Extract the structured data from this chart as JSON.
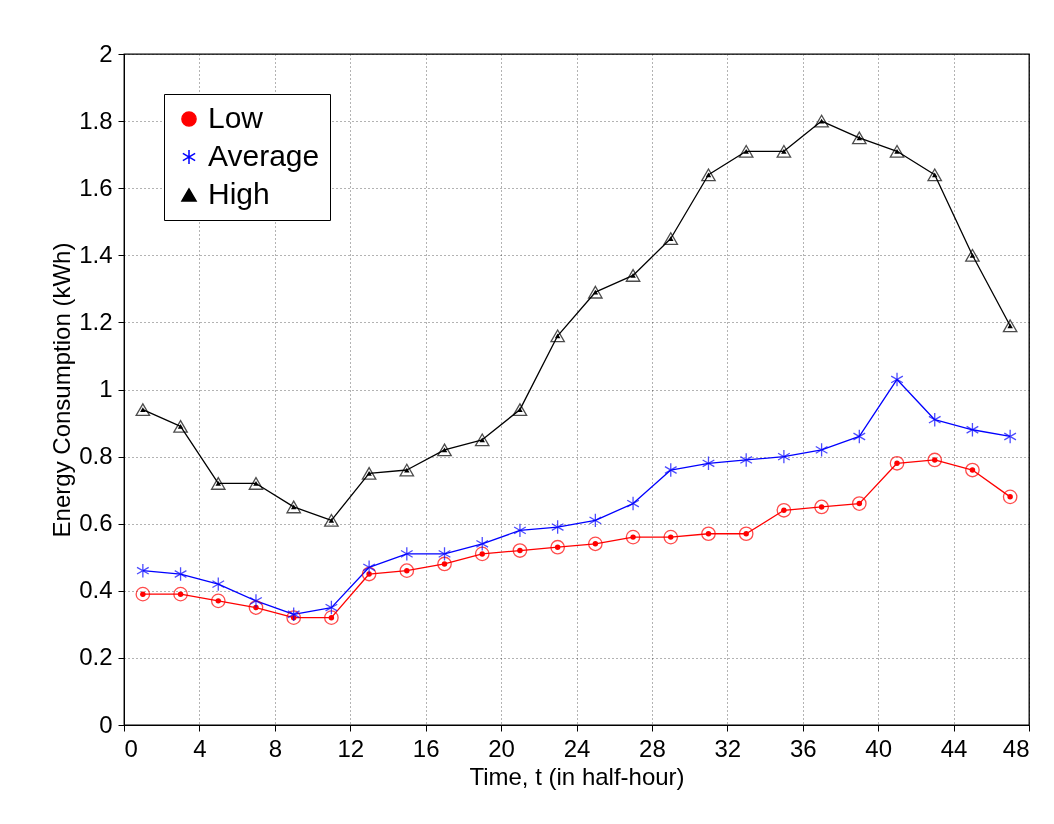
{
  "chart_data": {
    "type": "line",
    "xlabel": "Time, t (in half-hour)",
    "ylabel": "Energy Consumption (kWh)",
    "x": [
      1,
      3,
      5,
      7,
      9,
      11,
      13,
      15,
      17,
      19,
      21,
      23,
      25,
      27,
      29,
      31,
      33,
      35,
      37,
      39,
      41,
      43,
      45,
      47
    ],
    "xlim": [
      0,
      48
    ],
    "xticks": [
      0,
      4,
      8,
      12,
      16,
      20,
      24,
      28,
      32,
      36,
      40,
      44,
      48
    ],
    "ylim": [
      0,
      2
    ],
    "yticks": [
      0,
      0.2,
      0.4,
      0.6,
      0.8,
      1,
      1.2,
      1.4,
      1.6,
      1.8,
      2
    ],
    "grid": true,
    "legend": "top left",
    "line_style": "solid",
    "series": [
      {
        "name": "Low",
        "color": "#ff0000",
        "marker": "circle",
        "values": [
          0.39,
          0.39,
          0.37,
          0.35,
          0.32,
          0.32,
          0.45,
          0.46,
          0.48,
          0.51,
          0.52,
          0.53,
          0.54,
          0.56,
          0.56,
          0.57,
          0.57,
          0.64,
          0.65,
          0.66,
          0.78,
          0.79,
          0.76,
          0.68
        ]
      },
      {
        "name": "Average",
        "color": "#0000ff",
        "marker": "cross",
        "values": [
          0.46,
          0.45,
          0.42,
          0.37,
          0.33,
          0.35,
          0.47,
          0.51,
          0.51,
          0.54,
          0.58,
          0.59,
          0.61,
          0.66,
          0.76,
          0.78,
          0.79,
          0.8,
          0.82,
          0.86,
          1.03,
          0.91,
          0.88,
          0.86
        ]
      },
      {
        "name": "High",
        "color": "#000000",
        "marker": "triangle",
        "values": [
          0.94,
          0.89,
          0.72,
          0.72,
          0.65,
          0.61,
          0.75,
          0.76,
          0.82,
          0.85,
          0.94,
          1.16,
          1.29,
          1.34,
          1.45,
          1.64,
          1.71,
          1.71,
          1.8,
          1.75,
          1.71,
          1.64,
          1.4,
          1.19
        ]
      }
    ]
  }
}
